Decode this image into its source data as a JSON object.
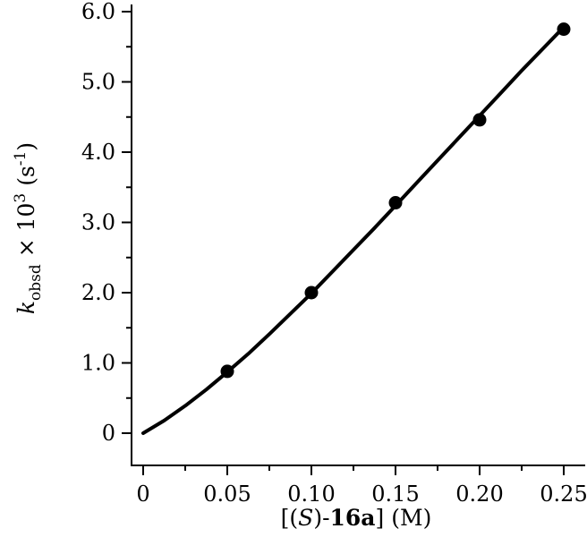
{
  "chart_data": {
    "type": "scatter",
    "title": "",
    "xlabel": {
      "prefix": "[(",
      "italic": "S",
      "mid": ")-",
      "bold": "16a",
      "suffix": "] (M)"
    },
    "ylabel": {
      "italic": "k",
      "subscript": "obsd",
      "mid": " × 10",
      "superscript": "3",
      "unit_open": " (s",
      "unit_sup": "-1",
      "unit_close": ")"
    },
    "xlim": [
      0,
      0.25
    ],
    "ylim": [
      0,
      6.0
    ],
    "x_ticks": [
      {
        "value": 0,
        "label": "0"
      },
      {
        "value": 0.05,
        "label": "0.05"
      },
      {
        "value": 0.1,
        "label": "0.10"
      },
      {
        "value": 0.15,
        "label": "0.15"
      },
      {
        "value": 0.2,
        "label": "0.20"
      },
      {
        "value": 0.25,
        "label": "0.25"
      }
    ],
    "x_minor_ticks": [
      0.025,
      0.075,
      0.125,
      0.175,
      0.225
    ],
    "y_ticks": [
      {
        "value": 0,
        "label": "0"
      },
      {
        "value": 1.0,
        "label": "1.0"
      },
      {
        "value": 2.0,
        "label": "2.0"
      },
      {
        "value": 3.0,
        "label": "3.0"
      },
      {
        "value": 4.0,
        "label": "4.0"
      },
      {
        "value": 5.0,
        "label": "5.0"
      },
      {
        "value": 6.0,
        "label": "6.0"
      }
    ],
    "y_minor_ticks": [
      0.5,
      1.5,
      2.5,
      3.5,
      4.5,
      5.5
    ],
    "grid": false,
    "legend": "none",
    "series": [
      {
        "kind": "points",
        "x": [
          0.05,
          0.1,
          0.15,
          0.2,
          0.25
        ],
        "y": [
          0.88,
          2.0,
          3.28,
          4.46,
          5.75
        ]
      },
      {
        "kind": "fit-curve",
        "x": [
          0,
          0.0125,
          0.025,
          0.0375,
          0.05,
          0.0625,
          0.075,
          0.0875,
          0.1,
          0.1125,
          0.125,
          0.1375,
          0.15,
          0.1625,
          0.175,
          0.1875,
          0.2,
          0.2125,
          0.225,
          0.2375,
          0.25
        ],
        "y": [
          0,
          0.18,
          0.39,
          0.62,
          0.87,
          1.13,
          1.41,
          1.7,
          1.99,
          2.3,
          2.61,
          2.92,
          3.24,
          3.56,
          3.88,
          4.2,
          4.52,
          4.84,
          5.16,
          5.47,
          5.78
        ]
      }
    ],
    "colors": {
      "marker": "#000000",
      "line": "#000000",
      "axis": "#000000"
    }
  }
}
